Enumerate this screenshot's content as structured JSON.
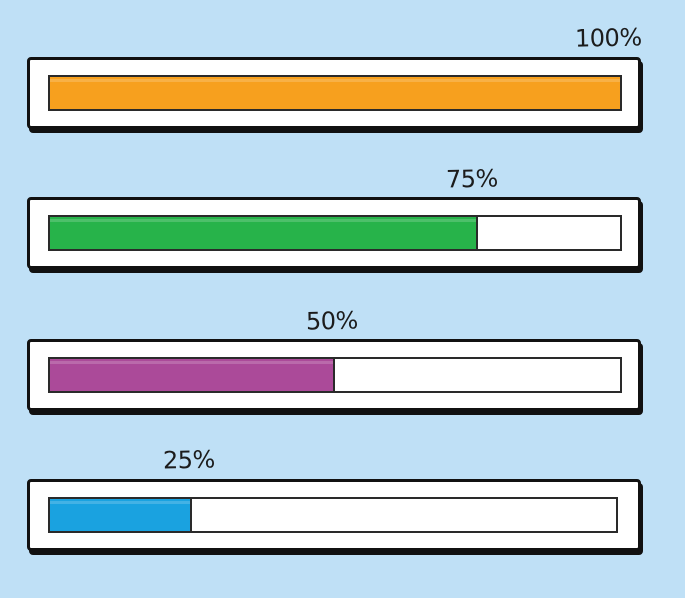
{
  "background_color": "#bfe0f6",
  "bars": [
    {
      "label": "100%",
      "progress": 1.0,
      "fill_color": "#f7a01e"
    },
    {
      "label": "75%",
      "progress": 0.75,
      "fill_color": "#27b34a"
    },
    {
      "label": "50%",
      "progress": 0.5,
      "fill_color": "#ab4a99"
    },
    {
      "label": "25%",
      "progress": 0.25,
      "fill_color": "#1aa2e0"
    }
  ]
}
